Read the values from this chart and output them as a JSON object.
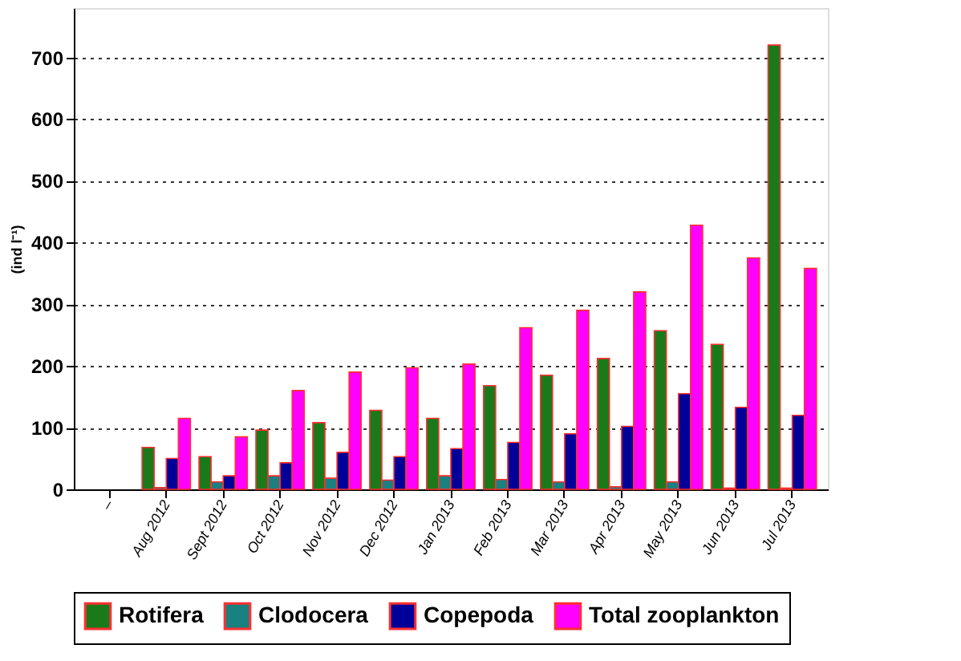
{
  "chart_data": {
    "type": "bar",
    "ylabel": "(ind l⁻¹)",
    "categories": [
      "–",
      "Aug 2012",
      "Sept 2012",
      "Oct 2012",
      "Nov 2012",
      "Dec 2012",
      "Jan 2013",
      "Feb 2013",
      "Mar 2013",
      "Apr 2013",
      "May 2013",
      "Jun 2013",
      "Jul 2013"
    ],
    "series": [
      {
        "name": "Rotifera",
        "color": "#1a7a1a",
        "values": [
          null,
          68,
          53,
          96,
          108,
          128,
          115,
          168,
          185,
          212,
          257,
          235,
          720
        ]
      },
      {
        "name": "Clodocera",
        "color": "#1a8080",
        "values": [
          null,
          3,
          12,
          22,
          18,
          15,
          22,
          16,
          12,
          4,
          12,
          2,
          2
        ]
      },
      {
        "name": "Copepoda",
        "color": "#000099",
        "values": [
          null,
          50,
          22,
          43,
          60,
          53,
          66,
          76,
          90,
          102,
          155,
          133,
          120
        ]
      },
      {
        "name": "Total zooplankton",
        "color": "#ff00ff",
        "values": [
          null,
          115,
          85,
          160,
          190,
          197,
          203,
          262,
          290,
          320,
          428,
          375,
          358
        ]
      }
    ],
    "ylim": [
      0,
      780
    ],
    "yticks": [
      0,
      100,
      200,
      300,
      400,
      500,
      600,
      700
    ],
    "grid": "y",
    "legend": "bottom"
  }
}
